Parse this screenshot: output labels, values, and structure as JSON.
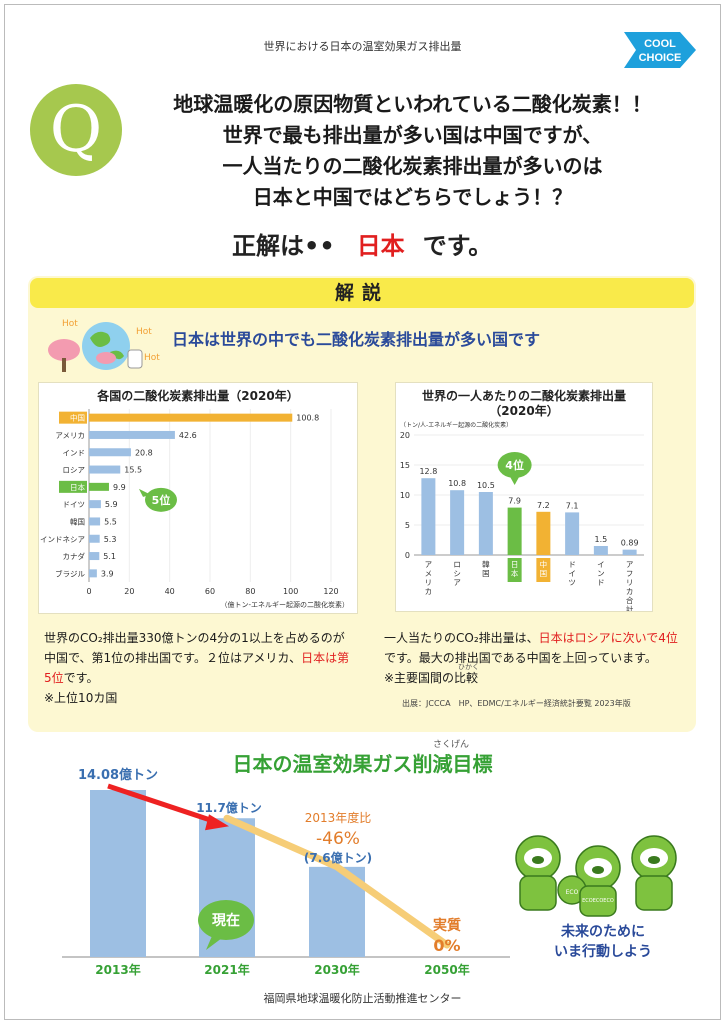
{
  "header": {
    "title": "世界における日本の温室効果ガス排出量"
  },
  "logo": {
    "line1": "COOL",
    "line2": "CHOICE"
  },
  "question": {
    "mark": "Q",
    "lines": [
      "地球温暖化の原因物質といわれている二酸化炭素！！",
      "世界で最も排出量が多い国は中国ですが、",
      "一人当たりの二酸化炭素排出量が多いのは",
      "日本と中国ではどちらでしょう！？"
    ]
  },
  "answer": {
    "prefix": "正解は••",
    "value": "日本",
    "suffix": "です。"
  },
  "explanation": {
    "heading": "解説",
    "subtitle": "日本は世界の中でも二酸化炭素排出量が多い国です",
    "hot_labels": [
      "Hot",
      "Hot",
      "Hot"
    ],
    "left_text": {
      "part1": "世界のCO₂排出量330億トンの4分の1以上を占めるのが中国で、第1位の排出国です。２位はアメリカ、",
      "highlight": "日本は第5位",
      "part2": "です。",
      "note": "※上位10カ国"
    },
    "right_text": {
      "part1": "一人当たりのCO₂排出量は、",
      "highlight": "日本はロシアに次いで4位",
      "part2": "です。最大の排出国である中国を上回っています。",
      "note": "※主要国間の比較",
      "note_ruby": "ひかく"
    },
    "source": "出展：JCCCA　HP、EDMC/エネルギー経済統計要覧 2023年版"
  },
  "colors": {
    "china": "#f2b233",
    "japan": "#6bbd45",
    "bar": "#9dbfe3",
    "accent_red": "#e11f1f",
    "goal_bar": "#9dbfe3",
    "trend_line": "#f6cd77"
  },
  "chart_data": [
    {
      "type": "bar",
      "orientation": "horizontal",
      "title": "各国の二酸化炭素排出量（2020年）",
      "unit_note": "（億トン-エネルギー起源の二酸化炭素）",
      "categories": [
        "中国",
        "アメリカ",
        "インド",
        "ロシア",
        "日本",
        "ドイツ",
        "韓国",
        "インドネシア",
        "カナダ",
        "ブラジル"
      ],
      "values": [
        100.8,
        42.6,
        20.8,
        15.5,
        9.9,
        5.9,
        5.5,
        5.3,
        5.1,
        3.9
      ],
      "highlight": {
        "中国": "china",
        "日本": "japan"
      },
      "callout": "5位",
      "xlim": [
        0,
        120
      ],
      "xticks": [
        0,
        20,
        40,
        60,
        80,
        100,
        120
      ]
    },
    {
      "type": "bar",
      "orientation": "vertical",
      "title": "世界の一人あたりの二酸化炭素排出量",
      "title2": "（2020年）",
      "ylabel": "（トン/人-エネルギー起源の二酸化炭素）",
      "categories": [
        "アメリカ",
        "ロシア",
        "韓国",
        "日本",
        "中国",
        "ドイツ",
        "インド",
        "アフリカ合計"
      ],
      "values": [
        12.8,
        10.8,
        10.5,
        7.9,
        7.2,
        7.1,
        1.5,
        0.89
      ],
      "value_labels": [
        "12.8",
        "10.8",
        "10.5",
        "7.9",
        "7.2",
        "7.1",
        "1.5",
        "0.89"
      ],
      "highlight": {
        "日本": "japan",
        "中国": "china"
      },
      "callout": "4位",
      "ylim": [
        0,
        20
      ],
      "yticks": [
        0,
        5,
        10,
        15,
        20
      ]
    },
    {
      "type": "bar",
      "title": "日本の温室効果ガス削減目標",
      "title_ruby": "さくげん",
      "categories": [
        "2013年",
        "2021年",
        "2030年",
        "2050年"
      ],
      "values": [
        14.08,
        11.7,
        7.6,
        0
      ],
      "value_labels": [
        "14.08億トン",
        "11.7億トン",
        "(7.6億トン)",
        "0%"
      ],
      "annotations": {
        "target_label": "2013年度比",
        "target_pct": "-46%",
        "final_label": "実質",
        "now_label": "現在"
      }
    }
  ],
  "slogan": {
    "line1": "未来のために",
    "line2": "いま行動しよう"
  },
  "mascot_badges": [
    "ECO",
    "ECOECOECO"
  ],
  "footer": {
    "org": "福岡県地球温暖化防止活動推進センター"
  }
}
